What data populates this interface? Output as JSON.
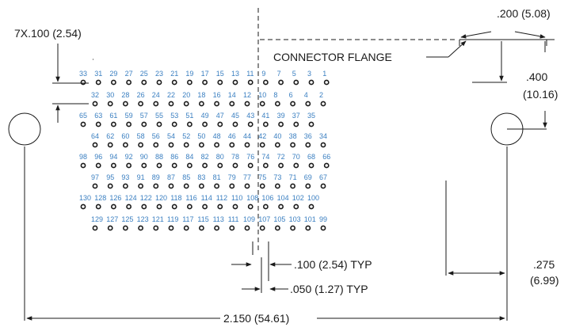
{
  "drawing": {
    "pin_count": 130,
    "rows": [
      {
        "start": 33,
        "end": 1,
        "step": 2
      },
      {
        "start": 32,
        "end": 2,
        "step": 2
      },
      {
        "start": 65,
        "end": 35,
        "step": 2
      },
      {
        "start": 64,
        "end": 34,
        "step": 2
      },
      {
        "start": 98,
        "end": 66,
        "step": 2
      },
      {
        "start": 97,
        "end": 67,
        "step": 2
      },
      {
        "start": 130,
        "end": 100,
        "step": 2
      },
      {
        "start": 129,
        "end": 99,
        "step": 2
      }
    ]
  },
  "labels": {
    "row_pitch": "7X.100 (2.54)",
    "flange_offset": ".200 (5.08)",
    "connector_flange": "CONNECTOR FLANGE",
    "flange_height_in": ".400",
    "flange_height_mm": "(10.16)",
    "pin_pitch": ".100 (2.54) TYP",
    "stagger": ".050 (1.27) TYP",
    "hole_offset_in": ".275",
    "hole_offset_mm": "(6.99)",
    "overall_width": "2.150 (54.61)"
  }
}
